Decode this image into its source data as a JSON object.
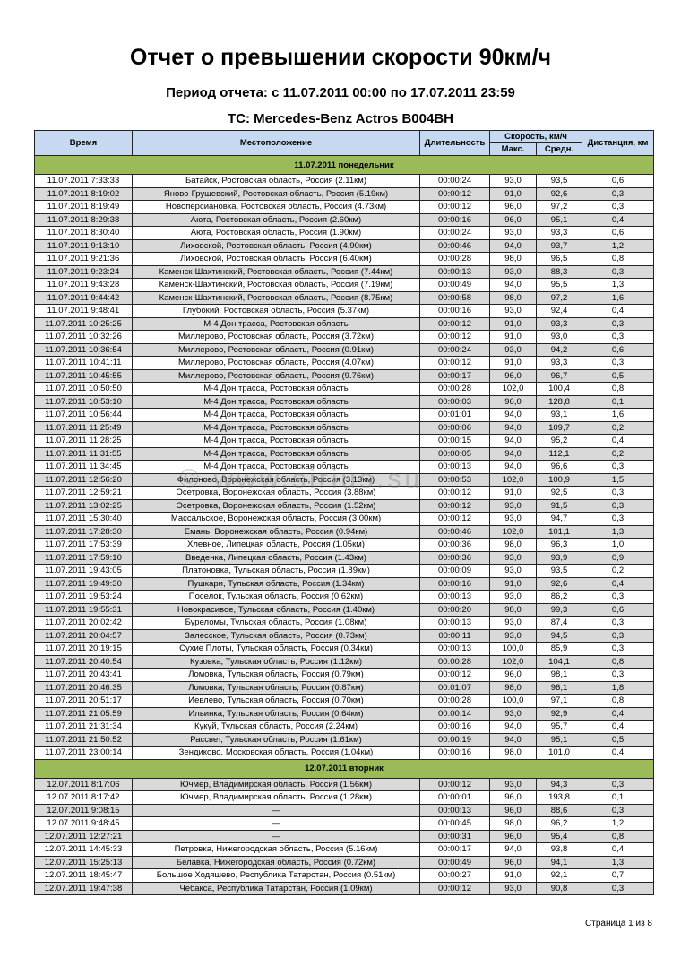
{
  "title": "Отчет о превышении скорости 90км/ч",
  "period": "Период отчета: с 11.07.2011 00:00 по 17.07.2011 23:59",
  "vehicle": "ТС: Mercedes-Benz Actros B004BH",
  "headers": {
    "time": "Время",
    "location": "Местоположение",
    "duration": "Длительность",
    "speed": "Скорость, км/ч",
    "max": "Макс.",
    "avg": "Средн.",
    "distance": "Дистанция, км"
  },
  "colors": {
    "header": "#c6d9f0",
    "day_row": "#9bbb59",
    "shaded_row": "#d9d9d9"
  },
  "days": [
    {
      "label": "11.07.2011 понедельник",
      "rows": [
        [
          "11.07.2011 7:33:33",
          "Батайск, Ростовская область, Россия (2.11км)",
          "00:00:24",
          "93,0",
          "93,5",
          "0,6"
        ],
        [
          "11.07.2011 8:19:02",
          "Яново-Грушевский, Ростовская область, Россия (5.19км)",
          "00:00:12",
          "91,0",
          "92,6",
          "0,3"
        ],
        [
          "11.07.2011 8:19:49",
          "Новоперсиановка, Ростовская область, Россия (4.73км)",
          "00:00:12",
          "96,0",
          "97,2",
          "0,3"
        ],
        [
          "11.07.2011 8:29:38",
          "Аюта, Ростовская область, Россия (2.60км)",
          "00:00:16",
          "96,0",
          "95,1",
          "0,4"
        ],
        [
          "11.07.2011 8:30:40",
          "Аюта, Ростовская область, Россия (1.90км)",
          "00:00:24",
          "93,0",
          "93,3",
          "0,6"
        ],
        [
          "11.07.2011 9:13:10",
          "Лиховской, Ростовская область, Россия (4.90км)",
          "00:00:46",
          "94,0",
          "93,7",
          "1,2"
        ],
        [
          "11.07.2011 9:21:36",
          "Лиховской, Ростовская область, Россия (6.40км)",
          "00:00:28",
          "98,0",
          "96,5",
          "0,8"
        ],
        [
          "11.07.2011 9:23:24",
          "Каменск-Шахтинский, Ростовская область, Россия (7.44км)",
          "00:00:13",
          "93,0",
          "88,3",
          "0,3"
        ],
        [
          "11.07.2011 9:43:28",
          "Каменск-Шахтинский, Ростовская область, Россия (7.19км)",
          "00:00:49",
          "94,0",
          "95,5",
          "1,3"
        ],
        [
          "11.07.2011 9:44:42",
          "Каменск-Шахтинский, Ростовская область, Россия (8.75км)",
          "00:00:58",
          "98,0",
          "97,2",
          "1,6"
        ],
        [
          "11.07.2011 9:48:41",
          "Глубокий, Ростовская область, Россия (5.37км)",
          "00:00:16",
          "93,0",
          "92,4",
          "0,4"
        ],
        [
          "11.07.2011 10:25:25",
          "М-4 Дон трасса, Ростовская область",
          "00:00:12",
          "91,0",
          "93,3",
          "0,3"
        ],
        [
          "11.07.2011 10:32:26",
          "Миллерово, Ростовская область, Россия (3.72км)",
          "00:00:12",
          "91,0",
          "93,0",
          "0,3"
        ],
        [
          "11.07.2011 10:36:54",
          "Миллерово, Ростовская область, Россия (0.91км)",
          "00:00:24",
          "93,0",
          "94,2",
          "0,6"
        ],
        [
          "11.07.2011 10:41:11",
          "Миллерово, Ростовская область, Россия (4.07км)",
          "00:00:12",
          "91,0",
          "93,3",
          "0,3"
        ],
        [
          "11.07.2011 10:45:55",
          "Миллерово, Ростовская область, Россия (9.76км)",
          "00:00:17",
          "96,0",
          "96,7",
          "0,5"
        ],
        [
          "11.07.2011 10:50:50",
          "М-4 Дон трасса, Ростовская область",
          "00:00:28",
          "102,0",
          "100,4",
          "0,8"
        ],
        [
          "11.07.2011 10:53:10",
          "М-4 Дон трасса, Ростовская область",
          "00:00:03",
          "96,0",
          "128,8",
          "0,1"
        ],
        [
          "11.07.2011 10:56:44",
          "М-4 Дон трасса, Ростовская область",
          "00:01:01",
          "94,0",
          "93,1",
          "1,6"
        ],
        [
          "11.07.2011 11:25:49",
          "М-4 Дон трасса, Ростовская область",
          "00:00:06",
          "94,0",
          "109,7",
          "0,2"
        ],
        [
          "11.07.2011 11:28:25",
          "М-4 Дон трасса, Ростовская область",
          "00:00:15",
          "94,0",
          "95,2",
          "0,4"
        ],
        [
          "11.07.2011 11:31:55",
          "М-4 Дон трасса, Ростовская область",
          "00:00:05",
          "94,0",
          "112,1",
          "0,2"
        ],
        [
          "11.07.2011 11:34:45",
          "М-4 Дон трасса, Ростовская область",
          "00:00:13",
          "94,0",
          "96,6",
          "0,3"
        ],
        [
          "11.07.2011 12:56:20",
          "Филоново, Воронежская область, Россия (3.13км)",
          "00:00:53",
          "102,0",
          "100,9",
          "1,5"
        ],
        [
          "11.07.2011 12:59:21",
          "Осетровка, Воронежская область, Россия (3.88км)",
          "00:00:12",
          "91,0",
          "92,5",
          "0,3"
        ],
        [
          "11.07.2011 13:02:25",
          "Осетровка, Воронежская область, Россия (1.52км)",
          "00:00:12",
          "93,0",
          "91,5",
          "0,3"
        ],
        [
          "11.07.2011 15:30:40",
          "Массальское, Воронежская область, Россия (3.00км)",
          "00:00:12",
          "93,0",
          "94,7",
          "0,3"
        ],
        [
          "11.07.2011 17:28:30",
          "Емань, Воронежская область, Россия (0.94км)",
          "00:00:46",
          "102,0",
          "101,1",
          "1,3"
        ],
        [
          "11.07.2011 17:53:39",
          "Хлевное, Липецкая область, Россия (1.05км)",
          "00:00:36",
          "98,0",
          "96,3",
          "1,0"
        ],
        [
          "11.07.2011 17:59:10",
          "Введенка, Липецкая область, Россия (1.43км)",
          "00:00:36",
          "93,0",
          "93,9",
          "0,9"
        ],
        [
          "11.07.2011 19:43:05",
          "Платоновка, Тульская область, Россия (1.89км)",
          "00:00:09",
          "93,0",
          "93,5",
          "0,2"
        ],
        [
          "11.07.2011 19:49:30",
          "Пушкари, Тульская область, Россия (1.34км)",
          "00:00:16",
          "91,0",
          "92,6",
          "0,4"
        ],
        [
          "11.07.2011 19:53:24",
          "Поселок, Тульская область, Россия (0.62км)",
          "00:00:13",
          "93,0",
          "86,2",
          "0,3"
        ],
        [
          "11.07.2011 19:55:31",
          "Новокрасивое, Тульская область, Россия (1.40км)",
          "00:00:20",
          "98,0",
          "99,3",
          "0,6"
        ],
        [
          "11.07.2011 20:02:42",
          "Буреломы, Тульская область, Россия (1.08км)",
          "00:00:13",
          "93,0",
          "87,4",
          "0,3"
        ],
        [
          "11.07.2011 20:04:57",
          "Залесское, Тульская область, Россия (0.73км)",
          "00:00:11",
          "93,0",
          "94,5",
          "0,3"
        ],
        [
          "11.07.2011 20:19:15",
          "Сухие Плоты, Тульская область, Россия (0.34км)",
          "00:00:13",
          "100,0",
          "85,9",
          "0,3"
        ],
        [
          "11.07.2011 20:40:54",
          "Кузовка, Тульская область, Россия (1.12км)",
          "00:00:28",
          "102,0",
          "104,1",
          "0,8"
        ],
        [
          "11.07.2011 20:43:41",
          "Ломовка, Тульская область, Россия (0.79км)",
          "00:00:12",
          "96,0",
          "98,1",
          "0,3"
        ],
        [
          "11.07.2011 20:46:35",
          "Ломовка, Тульская область, Россия (0.87км)",
          "00:01:07",
          "98,0",
          "96,1",
          "1,8"
        ],
        [
          "11.07.2011 20:51:17",
          "Иевлево, Тульская область, Россия (0.70км)",
          "00:00:28",
          "100,0",
          "97,1",
          "0,8"
        ],
        [
          "11.07.2011 21:05:59",
          "Ильинка, Тульская область, Россия (0.64км)",
          "00:00:14",
          "93,0",
          "92,9",
          "0,4"
        ],
        [
          "11.07.2011 21:31:34",
          "Кукуй, Тульская область, Россия (2.24км)",
          "00:00:16",
          "94,0",
          "95,7",
          "0,4"
        ],
        [
          "11.07.2011 21:50:52",
          "Рассвет, Тульская область, Россия (1.61км)",
          "00:00:19",
          "94,0",
          "95,1",
          "0,5"
        ],
        [
          "11.07.2011 23:00:14",
          "Зендиково, Московская область, Россия (1.04км)",
          "00:00:16",
          "98,0",
          "101,0",
          "0,4"
        ]
      ]
    },
    {
      "label": "12.07.2011 вторник",
      "rows": [
        [
          "12.07.2011 8:17:06",
          "Ючмер, Владимирская область, Россия (1.56км)",
          "00:00:12",
          "93,0",
          "94,3",
          "0,3"
        ],
        [
          "12.07.2011 8:17:42",
          "Ючмер, Владимирская область, Россия (1.28км)",
          "00:00:01",
          "96,0",
          "193,8",
          "0,1"
        ],
        [
          "12.07.2011 9:08:15",
          "—",
          "00:00:13",
          "96,0",
          "88,6",
          "0,3"
        ],
        [
          "12.07.2011 9:48:45",
          "—",
          "00:00:45",
          "98,0",
          "96,2",
          "1,2"
        ],
        [
          "12.07.2011 12:27:21",
          "—",
          "00:00:31",
          "96,0",
          "95,4",
          "0,8"
        ],
        [
          "12.07.2011 14:45:33",
          "Петровка, Нижегородская область, Россия (5.16км)",
          "00:00:17",
          "94,0",
          "93,8",
          "0,4"
        ],
        [
          "12.07.2011 15:25:13",
          "Белавка, Нижегородская область, Россия (0.72км)",
          "00:00:49",
          "96,0",
          "94,1",
          "1,3"
        ],
        [
          "12.07.2011 18:45:47",
          "Большое Ходяшево, Республика Татарстан, Россия (0.51км)",
          "00:00:27",
          "91,0",
          "92,1",
          "0,7"
        ],
        [
          "12.07.2011 19:47:38",
          "Чебакса, Республика Татарстан, Россия (1.09км)",
          "00:00:12",
          "93,0",
          "90,8",
          "0,3"
        ]
      ]
    }
  ],
  "watermark": "© www.sirius.su",
  "footer": "Страница 1 из 8"
}
